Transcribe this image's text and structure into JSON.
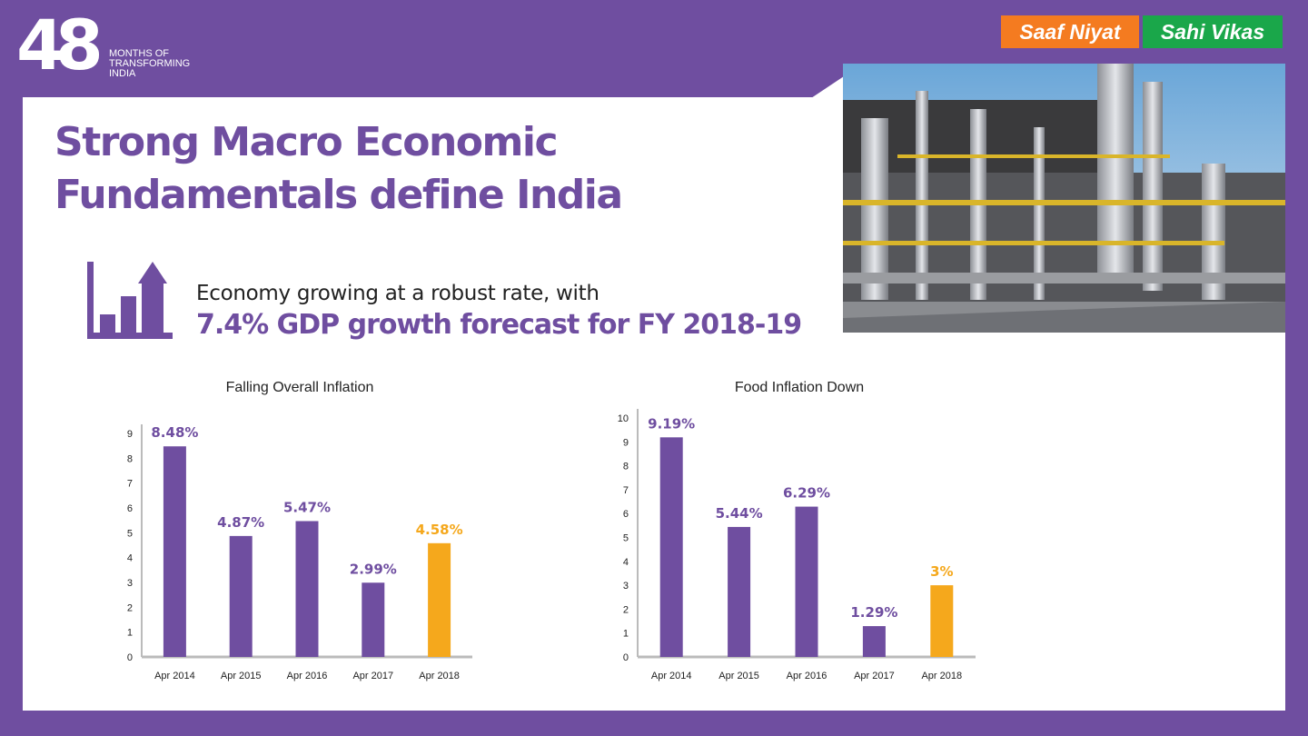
{
  "header": {
    "logo_number": "48",
    "logo_lines": [
      "MONTHS OF",
      "TRANSFORMING",
      "INDIA"
    ],
    "slogan_1": "Saaf Niyat",
    "slogan_2": "Sahi Vikas"
  },
  "title_lines": [
    "Strong Macro Economic",
    "Fundamentals define India"
  ],
  "growth": {
    "line1": "Economy growing at a robust rate, with",
    "line2": "7.4% GDP growth forecast for FY 2018-19",
    "icon": "bar-chart-growth-icon"
  },
  "colors": {
    "purple": "#6f4ea0",
    "highlight": "#f5a81c",
    "orange": "#f47b20",
    "green": "#1aa74a"
  },
  "chart_data": [
    {
      "type": "bar",
      "title": "Falling Overall Inflation",
      "categories": [
        "Apr 2014",
        "Apr 2015",
        "Apr 2016",
        "Apr 2017",
        "Apr 2018"
      ],
      "values": [
        8.48,
        4.87,
        5.47,
        2.99,
        4.58
      ],
      "labels": [
        "8.48%",
        "4.87%",
        "5.47%",
        "2.99%",
        "4.58%"
      ],
      "highlight_index": 4,
      "ylim": [
        0,
        9
      ],
      "yticks": [
        0,
        1,
        2,
        3,
        4,
        5,
        6,
        7,
        8,
        9
      ],
      "grid": false
    },
    {
      "type": "bar",
      "title": "Food Inflation Down",
      "categories": [
        "Apr 2014",
        "Apr 2015",
        "Apr 2016",
        "Apr 2017",
        "Apr 2018"
      ],
      "values": [
        9.19,
        5.44,
        6.29,
        1.29,
        3
      ],
      "labels": [
        "9.19%",
        "5.44%",
        "6.29%",
        "1.29%",
        "3%"
      ],
      "highlight_index": 4,
      "ylim": [
        0,
        10
      ],
      "yticks": [
        0,
        1,
        2,
        3,
        4,
        5,
        6,
        7,
        8,
        9,
        10
      ],
      "grid": false
    }
  ]
}
